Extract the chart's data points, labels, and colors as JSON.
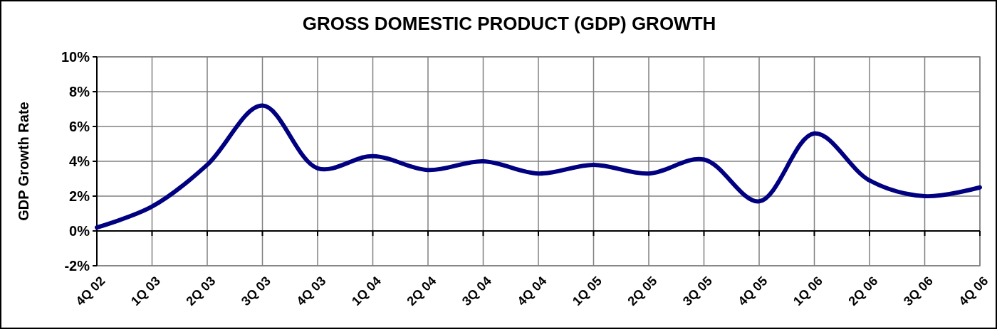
{
  "chart_data": {
    "type": "line",
    "title": "GROSS DOMESTIC PRODUCT (GDP) GROWTH",
    "ylabel": "GDP Growth Rate",
    "categories": [
      "4Q 02",
      "1Q 03",
      "2Q 03",
      "3Q 03",
      "4Q 03",
      "1Q 04",
      "2Q 04",
      "3Q 04",
      "4Q 04",
      "1Q 05",
      "2Q 05",
      "3Q 05",
      "4Q 05",
      "1Q 06",
      "2Q 06",
      "3Q 06",
      "4Q 06"
    ],
    "series": [
      {
        "color": "#000080",
        "values": [
          0.2,
          1.4,
          3.8,
          7.2,
          3.6,
          4.3,
          3.5,
          4.0,
          3.3,
          3.8,
          3.3,
          4.1,
          1.7,
          5.6,
          2.9,
          2.0,
          2.5
        ]
      }
    ],
    "ylim": [
      -2,
      10
    ],
    "yticks": [
      {
        "value": -2,
        "label": "-2%"
      },
      {
        "value": 0,
        "label": "0%"
      },
      {
        "value": 2,
        "label": "2%"
      },
      {
        "value": 4,
        "label": "4%"
      },
      {
        "value": 6,
        "label": "6%"
      },
      {
        "value": 8,
        "label": "8%"
      },
      {
        "value": 10,
        "label": "10%"
      }
    ],
    "grid": true,
    "marker": "none",
    "line_style": "solid"
  }
}
